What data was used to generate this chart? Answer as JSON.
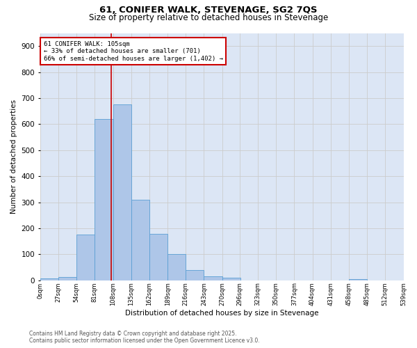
{
  "title1": "61, CONIFER WALK, STEVENAGE, SG2 7QS",
  "title2": "Size of property relative to detached houses in Stevenage",
  "xlabel": "Distribution of detached houses by size in Stevenage",
  "ylabel": "Number of detached properties",
  "annotation_line1": "61 CONIFER WALK: 105sqm",
  "annotation_line2": "← 33% of detached houses are smaller (701)",
  "annotation_line3": "66% of semi-detached houses are larger (1,402) →",
  "property_size": 105,
  "bin_edges": [
    0,
    27,
    54,
    81,
    108,
    135,
    162,
    189,
    216,
    243,
    270,
    296,
    323,
    350,
    377,
    404,
    431,
    458,
    485,
    512,
    539
  ],
  "bar_heights": [
    7,
    12,
    175,
    620,
    675,
    310,
    178,
    100,
    38,
    15,
    11,
    0,
    0,
    0,
    0,
    0,
    0,
    5,
    0,
    0
  ],
  "bar_color": "#aec6e8",
  "bar_edge_color": "#5a9fd4",
  "annotation_line_color": "#cc0000",
  "annotation_box_color": "#cc0000",
  "grid_color": "#cccccc",
  "background_color": "#dce6f5",
  "ylim": [
    0,
    950
  ],
  "yticks": [
    0,
    100,
    200,
    300,
    400,
    500,
    600,
    700,
    800,
    900
  ],
  "footer1": "Contains HM Land Registry data © Crown copyright and database right 2025.",
  "footer2": "Contains public sector information licensed under the Open Government Licence v3.0."
}
